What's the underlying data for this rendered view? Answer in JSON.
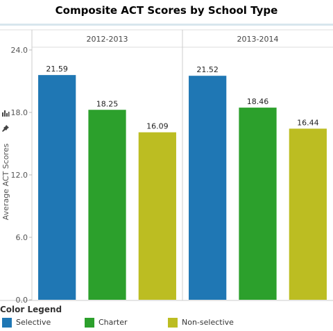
{
  "chart_data": {
    "type": "bar",
    "title": "Composite ACT Scores by School Type",
    "ylabel": "Average ACT Scores",
    "xlabel": "",
    "ylim": [
      0,
      24
    ],
    "yticks": [
      "0.0",
      "6.0",
      "12.0",
      "18.0",
      "24.0"
    ],
    "panels": [
      "2012-2013",
      "2013-2014"
    ],
    "categories": [
      "Selective",
      "Charter",
      "Non-selective"
    ],
    "colors": [
      "#1f77b4",
      "#2ca02c",
      "#bcbd22"
    ],
    "series": [
      {
        "panel": "2012-2013",
        "values": [
          21.59,
          18.25,
          16.09
        ]
      },
      {
        "panel": "2013-2014",
        "values": [
          21.52,
          18.46,
          16.44
        ]
      }
    ],
    "grid": false,
    "legend_position": "bottom-left"
  },
  "legend": {
    "title": "Color Legend",
    "items": [
      {
        "label": "Selective",
        "color": "#1f77b4"
      },
      {
        "label": "Charter",
        "color": "#2ca02c"
      },
      {
        "label": "Non-selective",
        "color": "#bcbd22"
      }
    ]
  },
  "toolbar": {
    "icons": [
      "bar-chart-icon",
      "pin-icon"
    ]
  }
}
